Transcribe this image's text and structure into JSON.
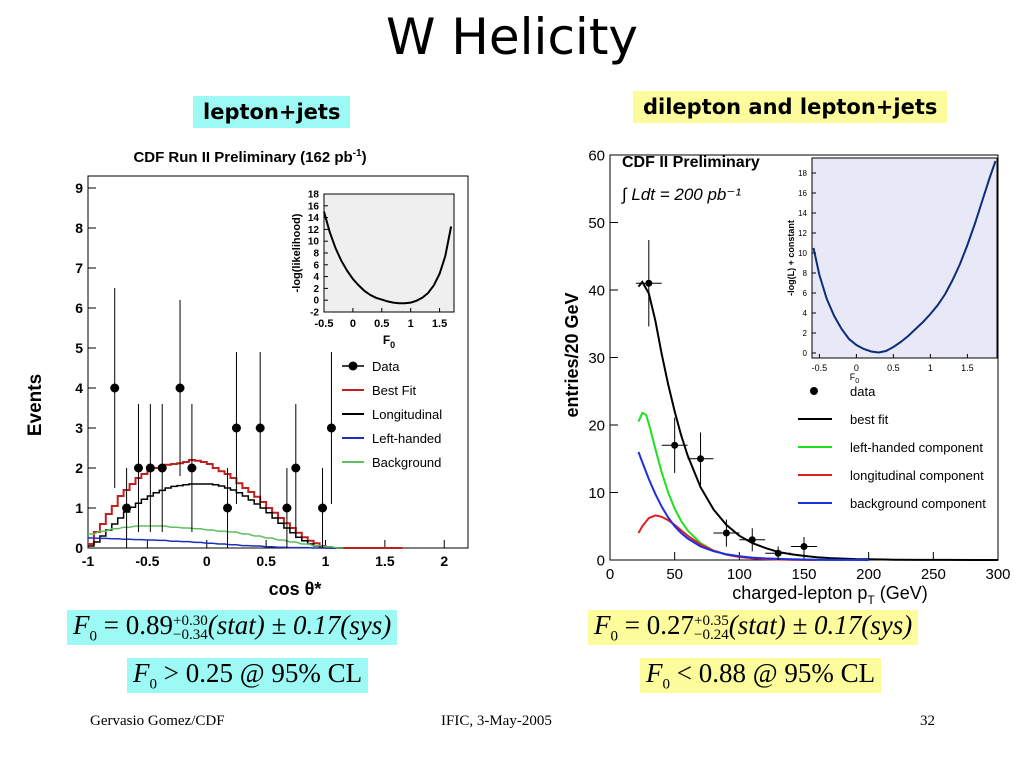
{
  "slide": {
    "title": "W Helicity",
    "left_label": "lepton+jets",
    "right_label": "dilepton and lepton+jets",
    "footer_left": "Gervasio Gomez/CDF",
    "footer_center": "IFIC, 3-May-2005",
    "footer_right": "32"
  },
  "formulas": {
    "left_main_prefix": "F",
    "left_main_sub": "0",
    "left_main_value": " = 0.89",
    "left_main_sup": "+0.30",
    "left_main_low": "−0.34",
    "left_main_rest": "(stat) ± 0.17(sys)",
    "left_limit_sub": "0",
    "left_limit_rest": " > 0.25 @ 95% CL",
    "right_main_value": " = 0.27",
    "right_main_sup": "+0.35",
    "right_main_low": "−0.24",
    "right_main_rest": "(stat) ± 0.17(sys)",
    "right_limit_rest": " < 0.88 @ 95% CL"
  },
  "chart_data": [
    {
      "type": "scatter",
      "title": "CDF Run II Preliminary (162 pb-1)",
      "title_main": "CDF Run II Preliminary (162 pb",
      "title_sup": "-1",
      "title_end": ")",
      "xlabel": "cos θ*",
      "ylabel": "Events",
      "xlim": [
        -1,
        2.2
      ],
      "ylim": [
        0,
        9.3
      ],
      "x_ticks": [
        "-1",
        "-0.5",
        "0",
        "0.5",
        "1",
        "1.5",
        "2"
      ],
      "y_ticks": [
        "0",
        "1",
        "2",
        "3",
        "4",
        "5",
        "6",
        "7",
        "8",
        "9"
      ],
      "data_points": [
        {
          "x": -0.775,
          "y": 4,
          "err": 2.5
        },
        {
          "x": -0.675,
          "y": 1,
          "err": 1
        },
        {
          "x": -0.575,
          "y": 2,
          "err": 1.6
        },
        {
          "x": -0.475,
          "y": 2,
          "err": 1.6
        },
        {
          "x": -0.375,
          "y": 2,
          "err": 1.6
        },
        {
          "x": -0.225,
          "y": 4,
          "err": 2.2
        },
        {
          "x": -0.125,
          "y": 2,
          "err": 1.6
        },
        {
          "x": 0.175,
          "y": 1,
          "err": 1
        },
        {
          "x": 0.25,
          "y": 3,
          "err": 1.9
        },
        {
          "x": 0.45,
          "y": 3,
          "err": 1.9
        },
        {
          "x": 0.675,
          "y": 1,
          "err": 1
        },
        {
          "x": 0.75,
          "y": 2,
          "err": 1.6
        },
        {
          "x": 0.975,
          "y": 1,
          "err": 1
        },
        {
          "x": 1.05,
          "y": 3,
          "err": 1.9
        }
      ],
      "series": [
        {
          "name": "Best Fit",
          "color": "#c0201f",
          "x": [
            -1,
            -0.95,
            -0.9,
            -0.85,
            -0.8,
            -0.75,
            -0.7,
            -0.65,
            -0.6,
            -0.55,
            -0.5,
            -0.45,
            -0.4,
            -0.35,
            -0.3,
            -0.25,
            -0.2,
            -0.15,
            -0.1,
            -0.05,
            0,
            0.05,
            0.1,
            0.15,
            0.2,
            0.25,
            0.3,
            0.35,
            0.4,
            0.45,
            0.5,
            0.55,
            0.6,
            0.65,
            0.7,
            0.75,
            0.8,
            0.85,
            0.9,
            0.95,
            1,
            1.05,
            1.1,
            1.15,
            1.2,
            1.25,
            1.3,
            1.35,
            1.4,
            1.45,
            1.5,
            1.55,
            1.6
          ],
          "values": [
            0.1,
            0.4,
            0.6,
            0.85,
            1.05,
            1.3,
            1.45,
            1.6,
            1.75,
            1.85,
            1.95,
            2.0,
            2.05,
            2.08,
            2.1,
            2.12,
            2.15,
            2.2,
            2.18,
            2.15,
            2.1,
            2.0,
            1.92,
            1.85,
            1.75,
            1.62,
            1.5,
            1.4,
            1.28,
            1.15,
            1.0,
            0.88,
            0.75,
            0.62,
            0.5,
            0.38,
            0.27,
            0.18,
            0.12,
            0.05,
            0.02,
            0,
            0,
            0,
            0,
            0,
            0,
            0,
            0,
            0,
            0,
            0,
            0
          ]
        },
        {
          "name": "Longitudinal",
          "color": "#000000",
          "x": [
            -1,
            -0.95,
            -0.9,
            -0.85,
            -0.8,
            -0.75,
            -0.7,
            -0.65,
            -0.6,
            -0.55,
            -0.5,
            -0.45,
            -0.4,
            -0.35,
            -0.3,
            -0.25,
            -0.2,
            -0.15,
            -0.1,
            -0.05,
            0,
            0.05,
            0.1,
            0.15,
            0.2,
            0.25,
            0.3,
            0.35,
            0.4,
            0.45,
            0.5,
            0.55,
            0.6,
            0.65,
            0.7,
            0.75,
            0.8,
            0.85,
            0.9,
            0.95,
            1,
            1.05,
            1.1
          ],
          "values": [
            0.05,
            0.15,
            0.3,
            0.45,
            0.6,
            0.75,
            0.9,
            1.02,
            1.12,
            1.22,
            1.3,
            1.38,
            1.44,
            1.5,
            1.54,
            1.56,
            1.58,
            1.6,
            1.6,
            1.6,
            1.6,
            1.58,
            1.55,
            1.5,
            1.45,
            1.38,
            1.3,
            1.2,
            1.1,
            1.0,
            0.88,
            0.75,
            0.62,
            0.5,
            0.38,
            0.27,
            0.18,
            0.1,
            0.05,
            0.02,
            0,
            0,
            0
          ]
        },
        {
          "name": "Left-handed",
          "color": "#1e2fbf",
          "x": [
            -1,
            -0.9,
            -0.8,
            -0.7,
            -0.6,
            -0.5,
            -0.4,
            -0.3,
            -0.2,
            -0.1,
            0,
            0.1,
            0.2,
            0.3,
            0.4,
            0.5,
            0.6,
            0.7,
            0.8,
            0.9,
            1.0,
            1.1
          ],
          "values": [
            0.25,
            0.24,
            0.23,
            0.22,
            0.21,
            0.2,
            0.19,
            0.17,
            0.16,
            0.14,
            0.12,
            0.1,
            0.08,
            0.06,
            0.05,
            0.03,
            0.02,
            0.01,
            0.01,
            0,
            0,
            0
          ]
        },
        {
          "name": "Background",
          "color": "#5fbf5f",
          "x": [
            -1,
            -0.9,
            -0.8,
            -0.7,
            -0.6,
            -0.5,
            -0.4,
            -0.3,
            -0.2,
            -0.1,
            0,
            0.1,
            0.2,
            0.3,
            0.4,
            0.5,
            0.6,
            0.7,
            0.8,
            0.9,
            1.0,
            1.1
          ],
          "values": [
            0.35,
            0.42,
            0.48,
            0.52,
            0.55,
            0.55,
            0.55,
            0.52,
            0.5,
            0.48,
            0.45,
            0.42,
            0.4,
            0.35,
            0.3,
            0.25,
            0.2,
            0.15,
            0.1,
            0.06,
            0.03,
            0
          ]
        }
      ],
      "legend": [
        "Data",
        "Best Fit",
        "Longitudinal",
        "Left-handed",
        "Background"
      ],
      "inset": {
        "type": "line",
        "xlabel": "F",
        "xlabel_sub": "0",
        "ylabel": "-log(likelihood)",
        "xlim": [
          -0.5,
          1.75
        ],
        "ylim": [
          -2,
          18
        ],
        "x_ticks": [
          "-0.5",
          "0",
          "0.5",
          "1",
          "1.5"
        ],
        "y_ticks": [
          "-2",
          "0",
          "2",
          "4",
          "6",
          "8",
          "10",
          "12",
          "14",
          "16",
          "18"
        ],
        "x": [
          -0.5,
          -0.4,
          -0.3,
          -0.2,
          -0.1,
          0,
          0.1,
          0.2,
          0.3,
          0.4,
          0.5,
          0.6,
          0.7,
          0.8,
          0.9,
          1.0,
          1.1,
          1.2,
          1.3,
          1.4,
          1.5,
          1.6,
          1.7
        ],
        "values": [
          15.0,
          11.5,
          8.8,
          6.7,
          5.0,
          3.6,
          2.5,
          1.6,
          0.9,
          0.4,
          0.1,
          -0.2,
          -0.4,
          -0.5,
          -0.5,
          -0.4,
          -0.1,
          0.4,
          1.2,
          2.5,
          4.5,
          7.5,
          12.5
        ]
      }
    },
    {
      "type": "line",
      "title": "CDF II Preliminary",
      "lumi": "∫ Ldt = 200 pb⁻¹",
      "xlabel": "charged-lepton p",
      "xlabel_sub": "T",
      "xlabel_unit": " (GeV)",
      "ylabel": "entries/20 GeV",
      "xlim": [
        0,
        300
      ],
      "ylim": [
        0,
        60
      ],
      "x_ticks": [
        "0",
        "50",
        "100",
        "150",
        "200",
        "250",
        "300"
      ],
      "y_ticks": [
        "0",
        "10",
        "20",
        "30",
        "40",
        "50",
        "60"
      ],
      "data_points": [
        {
          "x": 30,
          "y": 41,
          "err": 6.4,
          "xerr": 10
        },
        {
          "x": 50,
          "y": 17,
          "err": 4.1,
          "xerr": 10
        },
        {
          "x": 70,
          "y": 15,
          "err": 3.9,
          "xerr": 10
        },
        {
          "x": 90,
          "y": 4,
          "err": 2.0,
          "xerr": 10
        },
        {
          "x": 110,
          "y": 3,
          "err": 1.7,
          "xerr": 10
        },
        {
          "x": 130,
          "y": 1,
          "err": 1.0,
          "xerr": 10
        },
        {
          "x": 150,
          "y": 2,
          "err": 1.4,
          "xerr": 10
        }
      ],
      "series": [
        {
          "name": "best fit",
          "color": "#000000",
          "x": [
            22,
            25,
            30,
            35,
            40,
            45,
            50,
            55,
            60,
            70,
            80,
            90,
            100,
            110,
            120,
            130,
            140,
            150,
            160,
            170,
            180,
            190,
            200,
            220,
            240,
            260,
            280,
            300
          ],
          "values": [
            40.5,
            41.2,
            39.5,
            35.5,
            30.5,
            26,
            22,
            18.5,
            15.5,
            10.8,
            7.5,
            5.2,
            3.6,
            2.5,
            1.8,
            1.2,
            0.85,
            0.6,
            0.4,
            0.28,
            0.2,
            0.14,
            0.1,
            0.05,
            0.02,
            0.01,
            0,
            0
          ]
        },
        {
          "name": "left-handed component",
          "color": "#1fe01f",
          "x": [
            22,
            25,
            28,
            31,
            35,
            40,
            45,
            50,
            55,
            60,
            70,
            80,
            90,
            100,
            110,
            120,
            130,
            140,
            150,
            160,
            170,
            180
          ],
          "values": [
            20.5,
            21.8,
            21.5,
            19.5,
            16.5,
            13,
            10,
            7.6,
            5.8,
            4.4,
            2.5,
            1.4,
            0.8,
            0.5,
            0.3,
            0.18,
            0.1,
            0.06,
            0.03,
            0.02,
            0.01,
            0
          ]
        },
        {
          "name": "longitudinal component",
          "color": "#e01f1f",
          "x": [
            22,
            25,
            30,
            35,
            40,
            45,
            50,
            55,
            60,
            70,
            80,
            90,
            100,
            110,
            120,
            130,
            140,
            150,
            160
          ],
          "values": [
            4.0,
            5.0,
            6.2,
            6.6,
            6.4,
            5.9,
            5.2,
            4.4,
            3.6,
            2.3,
            1.4,
            0.8,
            0.45,
            0.25,
            0.13,
            0.07,
            0.03,
            0.01,
            0
          ]
        },
        {
          "name": "background component",
          "color": "#1f2fe0",
          "x": [
            22,
            25,
            30,
            35,
            40,
            45,
            50,
            55,
            60,
            70,
            80,
            90,
            100,
            110,
            120,
            130,
            140,
            150,
            160,
            170,
            180,
            200
          ],
          "values": [
            16,
            14.5,
            12,
            9.8,
            7.9,
            6.3,
            5.0,
            4.0,
            3.2,
            2.0,
            1.3,
            0.85,
            0.55,
            0.36,
            0.24,
            0.16,
            0.1,
            0.07,
            0.04,
            0.02,
            0.01,
            0
          ]
        }
      ],
      "legend": [
        "data",
        "best fit",
        "left-handed component",
        "longitudinal component",
        "background component"
      ],
      "inset": {
        "type": "line",
        "xlabel": "F",
        "xlabel_sub": "0",
        "ylabel": "-log(L) + constant",
        "xlim": [
          -0.6,
          1.9
        ],
        "ylim": [
          -0.5,
          19.5
        ],
        "x_ticks": [
          "-0.5",
          "0",
          "0.5",
          "1",
          "1.5"
        ],
        "y_ticks": [
          "0",
          "2",
          "4",
          "6",
          "8",
          "10",
          "12",
          "14",
          "16",
          "18"
        ],
        "x": [
          -0.58,
          -0.5,
          -0.4,
          -0.3,
          -0.2,
          -0.1,
          0,
          0.1,
          0.2,
          0.3,
          0.4,
          0.5,
          0.6,
          0.7,
          0.8,
          0.9,
          1.0,
          1.1,
          1.2,
          1.3,
          1.4,
          1.5,
          1.6,
          1.7,
          1.8,
          1.88
        ],
        "values": [
          10.5,
          7.8,
          5.4,
          3.7,
          2.4,
          1.4,
          0.8,
          0.4,
          0.15,
          0.05,
          0.2,
          0.6,
          1.1,
          1.7,
          2.4,
          3.1,
          3.9,
          4.8,
          5.9,
          7.3,
          8.9,
          10.8,
          12.9,
          15.2,
          17.5,
          19.2
        ]
      }
    }
  ]
}
